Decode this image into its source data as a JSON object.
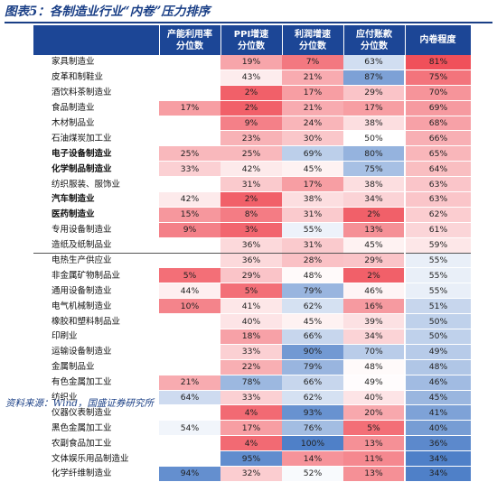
{
  "title": "图表5：各制造业行业“内卷”压力排序",
  "source": "资料来源：Wind，国盛证券研究所",
  "headers": [
    "",
    "产能利用率\n分位数",
    "PPI增速\n分位数",
    "利润增速\n分位数",
    "应付账款\n分位数",
    "内卷程度"
  ],
  "colors": {
    "red_strong": "#f0505a",
    "blue_strong": "#4f80c8",
    "header_bg": "#1c4696",
    "title_color": "#1a3f86"
  },
  "rows": [
    {
      "name": "家具制造业",
      "bold": false,
      "cu": "",
      "ppi": "19%",
      "profit": "7%",
      "ap": "63%",
      "inv": "81%",
      "sep": false
    },
    {
      "name": "皮革和制鞋业",
      "bold": false,
      "cu": "",
      "ppi": "43%",
      "profit": "21%",
      "ap": "87%",
      "inv": "75%",
      "sep": false
    },
    {
      "name": "酒饮料茶制造业",
      "bold": false,
      "cu": "",
      "ppi": "2%",
      "profit": "17%",
      "ap": "29%",
      "inv": "70%",
      "sep": false
    },
    {
      "name": "食品制造业",
      "bold": false,
      "cu": "17%",
      "ppi": "2%",
      "profit": "21%",
      "ap": "17%",
      "inv": "69%",
      "sep": false
    },
    {
      "name": "木材制品业",
      "bold": false,
      "cu": "",
      "ppi": "9%",
      "profit": "24%",
      "ap": "38%",
      "inv": "68%",
      "sep": false
    },
    {
      "name": "石油煤炭加工业",
      "bold": false,
      "cu": "",
      "ppi": "23%",
      "profit": "30%",
      "ap": "50%",
      "inv": "66%",
      "sep": false
    },
    {
      "name": "电子设备制造业",
      "bold": true,
      "cu": "25%",
      "ppi": "25%",
      "profit": "69%",
      "ap": "80%",
      "inv": "65%",
      "sep": false
    },
    {
      "name": "化学制品制造业",
      "bold": true,
      "cu": "33%",
      "ppi": "42%",
      "profit": "45%",
      "ap": "75%",
      "inv": "64%",
      "sep": false
    },
    {
      "name": "纺织服装、服饰业",
      "bold": false,
      "cu": "",
      "ppi": "31%",
      "profit": "17%",
      "ap": "38%",
      "inv": "63%",
      "sep": false
    },
    {
      "name": "汽车制造业",
      "bold": true,
      "cu": "42%",
      "ppi": "2%",
      "profit": "38%",
      "ap": "34%",
      "inv": "63%",
      "sep": false
    },
    {
      "name": "医药制造业",
      "bold": true,
      "cu": "15%",
      "ppi": "8%",
      "profit": "31%",
      "ap": "2%",
      "inv": "62%",
      "sep": false
    },
    {
      "name": "专用设备制造业",
      "bold": false,
      "cu": "9%",
      "ppi": "3%",
      "profit": "55%",
      "ap": "13%",
      "inv": "61%",
      "sep": false
    },
    {
      "name": "造纸及纸制品业",
      "bold": false,
      "cu": "",
      "ppi": "36%",
      "profit": "31%",
      "ap": "45%",
      "inv": "59%",
      "sep": true
    },
    {
      "name": "电热生产供应业",
      "bold": false,
      "cu": "",
      "ppi": "36%",
      "profit": "28%",
      "ap": "29%",
      "inv": "55%",
      "sep": false
    },
    {
      "name": "非金属矿物制品业",
      "bold": false,
      "cu": "5%",
      "ppi": "29%",
      "profit": "48%",
      "ap": "2%",
      "inv": "55%",
      "sep": false
    },
    {
      "name": "通用设备制造业",
      "bold": false,
      "cu": "44%",
      "ppi": "5%",
      "profit": "79%",
      "ap": "46%",
      "inv": "55%",
      "sep": false
    },
    {
      "name": "电气机械制造业",
      "bold": false,
      "cu": "10%",
      "ppi": "41%",
      "profit": "62%",
      "ap": "16%",
      "inv": "51%",
      "sep": false
    },
    {
      "name": "橡胶和塑料制品业",
      "bold": false,
      "cu": "",
      "ppi": "40%",
      "profit": "45%",
      "ap": "39%",
      "inv": "50%",
      "sep": false
    },
    {
      "name": "印刷业",
      "bold": false,
      "cu": "",
      "ppi": "18%",
      "profit": "66%",
      "ap": "34%",
      "inv": "50%",
      "sep": false
    },
    {
      "name": "运输设备制造业",
      "bold": false,
      "cu": "",
      "ppi": "33%",
      "profit": "90%",
      "ap": "70%",
      "inv": "49%",
      "sep": false
    },
    {
      "name": "金属制品业",
      "bold": false,
      "cu": "",
      "ppi": "22%",
      "profit": "79%",
      "ap": "48%",
      "inv": "48%",
      "sep": false
    },
    {
      "name": "有色金属加工业",
      "bold": false,
      "cu": "21%",
      "ppi": "78%",
      "profit": "66%",
      "ap": "49%",
      "inv": "46%",
      "sep": false
    },
    {
      "name": "纺织业",
      "bold": false,
      "cu": "64%",
      "ppi": "33%",
      "profit": "62%",
      "ap": "40%",
      "inv": "45%",
      "sep": false
    },
    {
      "name": "仪器仪表制造业",
      "bold": false,
      "cu": "",
      "ppi": "4%",
      "profit": "93%",
      "ap": "20%",
      "inv": "41%",
      "sep": false
    },
    {
      "name": "黑色金属加工业",
      "bold": false,
      "cu": "54%",
      "ppi": "17%",
      "profit": "76%",
      "ap": "5%",
      "inv": "40%",
      "sep": false
    },
    {
      "name": "农副食品加工业",
      "bold": false,
      "cu": "",
      "ppi": "4%",
      "profit": "100%",
      "ap": "13%",
      "inv": "36%",
      "sep": false
    },
    {
      "name": "文体娱乐用品制造业",
      "bold": false,
      "cu": "",
      "ppi": "95%",
      "profit": "14%",
      "ap": "11%",
      "inv": "34%",
      "sep": false
    },
    {
      "name": "化学纤维制造业",
      "bold": false,
      "cu": "94%",
      "ppi": "32%",
      "profit": "52%",
      "ap": "13%",
      "inv": "34%",
      "sep": false
    }
  ]
}
